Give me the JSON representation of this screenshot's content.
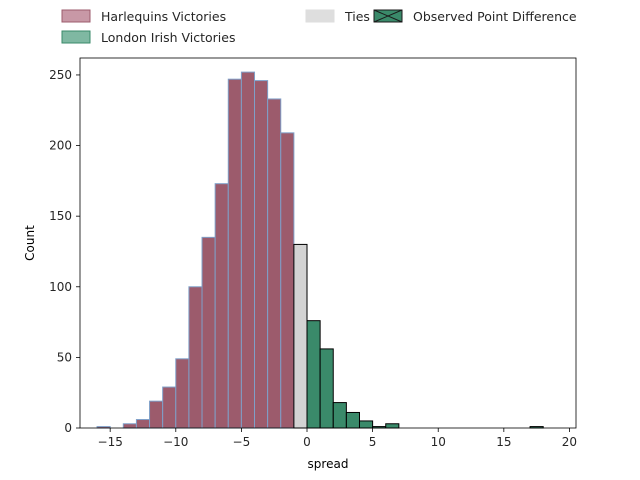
{
  "chart_data": {
    "type": "bar",
    "title": "",
    "xlabel": "spread",
    "ylabel": "Count",
    "xlim": [
      -17.3,
      20.5
    ],
    "ylim": [
      0,
      262
    ],
    "xticks": [
      -15,
      -10,
      -5,
      0,
      5,
      10,
      15,
      20
    ],
    "yticks": [
      0,
      50,
      100,
      150,
      200,
      250
    ],
    "grid": false,
    "legend_placement": "top",
    "bin_width": 1,
    "series": [
      {
        "name": "Harlequins Victories",
        "color": "#9c5b6c",
        "edge": "#7f9fc8",
        "bins": [
          {
            "x": -15.5,
            "count": 1
          },
          {
            "x": -13.5,
            "count": 3
          },
          {
            "x": -12.5,
            "count": 6
          },
          {
            "x": -11.5,
            "count": 19
          },
          {
            "x": -10.5,
            "count": 29
          },
          {
            "x": -9.5,
            "count": 49
          },
          {
            "x": -8.5,
            "count": 100
          },
          {
            "x": -7.5,
            "count": 135
          },
          {
            "x": -6.5,
            "count": 173
          },
          {
            "x": -5.5,
            "count": 247
          },
          {
            "x": -4.5,
            "count": 252
          },
          {
            "x": -3.5,
            "count": 246
          },
          {
            "x": -2.5,
            "count": 233
          },
          {
            "x": -1.5,
            "count": 209
          }
        ]
      },
      {
        "name": "Ties",
        "color": "#d3d3d3",
        "edge": "#000000",
        "bins": [
          {
            "x": -0.5,
            "count": 130
          }
        ]
      },
      {
        "name": "London Irish Victories",
        "color": "#3a8a6a",
        "edge": "#000000",
        "bins": [
          {
            "x": 0.5,
            "count": 76
          },
          {
            "x": 1.5,
            "count": 56
          },
          {
            "x": 2.5,
            "count": 18
          },
          {
            "x": 3.5,
            "count": 11
          },
          {
            "x": 4.5,
            "count": 5
          },
          {
            "x": 5.5,
            "count": 1
          },
          {
            "x": 6.5,
            "count": 3
          },
          {
            "x": 17.5,
            "count": 1
          }
        ]
      }
    ],
    "legend": [
      {
        "label": "Harlequins Victories",
        "color": "#c898a6",
        "edge": "#9c5b6c",
        "hatch": false
      },
      {
        "label": "London Irish Victories",
        "color": "#7fb8a2",
        "edge": "#3a8a6a",
        "hatch": false
      },
      {
        "label": "Ties",
        "color": "#dedede",
        "edge": "#dedede",
        "hatch": false
      },
      {
        "label": "Observed Point Difference",
        "color": "#3a8a6a",
        "edge": "#1a1a1a",
        "hatch": true
      }
    ]
  }
}
